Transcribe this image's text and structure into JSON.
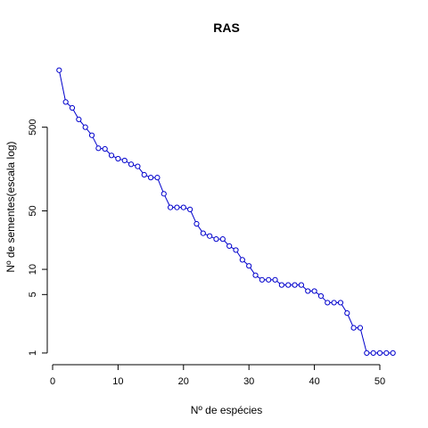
{
  "chart_data": {
    "type": "line",
    "title": "RAS",
    "xlabel": "Nº de espécies",
    "ylabel": "Nº de sementes(escala log)",
    "y_scale": "log",
    "xlim": [
      0,
      53
    ],
    "ylim": [
      0.8,
      3800
    ],
    "x_ticks": [
      0,
      10,
      20,
      30,
      40,
      50
    ],
    "x_tick_labels": [
      "0",
      "10",
      "20",
      "30",
      "40",
      "50"
    ],
    "y_ticks": [
      1,
      5,
      10,
      50,
      500
    ],
    "y_tick_labels": [
      "1",
      "5",
      "10",
      "50",
      "500"
    ],
    "grid": false,
    "series": [
      {
        "color": "#0000cc",
        "marker": "open-circle",
        "x": [
          1,
          2,
          3,
          4,
          5,
          6,
          7,
          8,
          9,
          10,
          11,
          12,
          13,
          14,
          15,
          16,
          17,
          18,
          19,
          20,
          21,
          22,
          23,
          24,
          25,
          26,
          27,
          28,
          29,
          30,
          31,
          32,
          33,
          34,
          35,
          36,
          37,
          38,
          39,
          40,
          41,
          42,
          43,
          44,
          45,
          46,
          47,
          48,
          49,
          50,
          51,
          52
        ],
        "y": [
          2400,
          1000,
          850,
          620,
          500,
          400,
          280,
          275,
          230,
          210,
          200,
          180,
          170,
          135,
          125,
          125,
          80,
          55,
          55,
          55,
          52,
          35,
          27,
          25,
          23,
          23,
          19,
          17,
          13,
          11,
          8.5,
          7.5,
          7.5,
          7.5,
          6.5,
          6.5,
          6.5,
          6.5,
          5.5,
          5.5,
          4.8,
          4,
          4,
          4,
          3,
          2,
          2,
          1,
          1,
          1,
          1,
          1
        ]
      }
    ]
  }
}
